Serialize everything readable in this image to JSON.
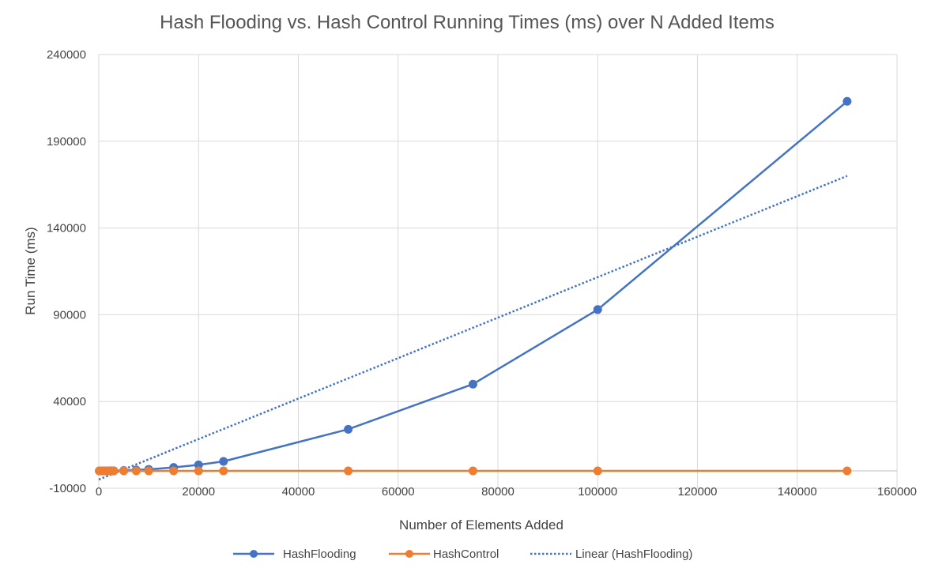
{
  "chart_data": {
    "type": "line",
    "title": "Hash Flooding vs. Hash Control Running Times (ms) over N Added Items",
    "xlabel": "Number of Elements Added",
    "ylabel": "Run Time (ms)",
    "xlim": [
      0,
      160000
    ],
    "ylim": [
      -10000,
      240000
    ],
    "x_ticks": [
      "0",
      "20000",
      "40000",
      "60000",
      "80000",
      "100000",
      "120000",
      "140000",
      "160000"
    ],
    "y_ticks": [
      "-10000",
      "40000",
      "90000",
      "140000",
      "190000",
      "240000"
    ],
    "grid": true,
    "legend_position": "bottom",
    "series": [
      {
        "name": "HashFlooding",
        "color": "#4472C4",
        "style": "solid-markers",
        "points": [
          [
            100,
            0
          ],
          [
            500,
            0
          ],
          [
            1000,
            10
          ],
          [
            1500,
            20
          ],
          [
            2000,
            40
          ],
          [
            2500,
            70
          ],
          [
            3000,
            100
          ],
          [
            5000,
            250
          ],
          [
            7500,
            550
          ],
          [
            10000,
            900
          ],
          [
            15000,
            2000
          ],
          [
            20000,
            3500
          ],
          [
            25000,
            5500
          ],
          [
            50000,
            24000
          ],
          [
            75000,
            50000
          ],
          [
            100000,
            93000
          ],
          [
            150000,
            213000
          ]
        ]
      },
      {
        "name": "HashControl",
        "color": "#ED7D31",
        "style": "solid-markers",
        "points": [
          [
            100,
            0
          ],
          [
            500,
            0
          ],
          [
            1000,
            0
          ],
          [
            1500,
            0
          ],
          [
            2000,
            0
          ],
          [
            2500,
            0
          ],
          [
            3000,
            0
          ],
          [
            5000,
            0
          ],
          [
            7500,
            0
          ],
          [
            10000,
            0
          ],
          [
            15000,
            0
          ],
          [
            20000,
            0
          ],
          [
            25000,
            0
          ],
          [
            50000,
            0
          ],
          [
            75000,
            0
          ],
          [
            100000,
            0
          ],
          [
            150000,
            0
          ]
        ]
      },
      {
        "name": "Linear (HashFlooding)",
        "color": "#4472C4",
        "style": "dotted",
        "points": [
          [
            0,
            -5000
          ],
          [
            150000,
            170000
          ]
        ]
      }
    ]
  }
}
